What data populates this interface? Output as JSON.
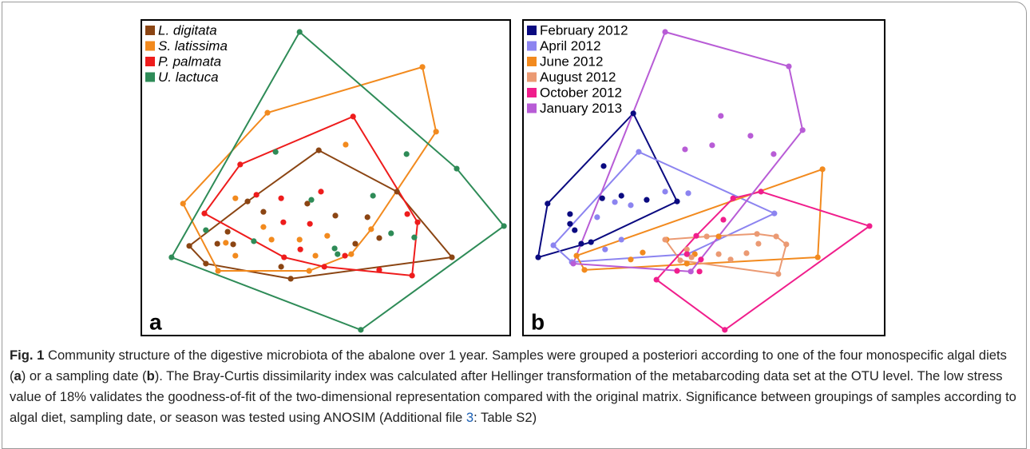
{
  "chart_data": [
    {
      "type": "scatter",
      "panel_label": "a",
      "xlim": [
        0,
        100
      ],
      "ylim": [
        0,
        100
      ],
      "series": [
        {
          "name": "L. digitata",
          "color": "#8b4513",
          "x": [
            48.1,
            69.3,
            84.2,
            40.5,
            17.5,
            13.0,
            20.6,
            23.4,
            28.8,
            33.1,
            45.0,
            52.6,
            61.3,
            64.5,
            37.9,
            24.9,
            58.0
          ],
          "y": [
            58.7,
            45.6,
            24.8,
            18.0,
            22.8,
            28.4,
            29.1,
            32.9,
            42.5,
            39.2,
            41.8,
            38.0,
            37.5,
            30.9,
            21.8,
            28.9,
            29.1
          ]
        },
        {
          "name": "S. latissima",
          "color": "#f28a1e",
          "x": [
            11.3,
            34.2,
            76.2,
            79.9,
            20.8,
            55.4,
            25.5,
            33.1,
            22.9,
            25.5,
            35.3,
            42.9,
            50.4,
            47.2,
            45.5,
            56.9,
            62.3
          ],
          "y": [
            41.8,
            70.6,
            85.1,
            64.6,
            20.5,
            60.5,
            43.5,
            34.4,
            29.4,
            25.3,
            30.4,
            30.4,
            31.6,
            25.3,
            20.5,
            25.8,
            33.7
          ]
        },
        {
          "name": "P. palmata",
          "color": "#ee1c1c",
          "x": [
            17.1,
            26.8,
            57.4,
            72.1,
            74.9,
            73.4,
            64.5,
            49.6,
            38.7,
            31.2,
            37.9,
            48.7,
            38.5,
            45.7,
            55.2,
            43.1
          ],
          "y": [
            38.7,
            54.2,
            69.4,
            38.5,
            35.9,
            19.0,
            20.8,
            21.8,
            24.8,
            44.6,
            43.5,
            45.6,
            35.9,
            35.4,
            25.3,
            27.3
          ]
        },
        {
          "name": "U. lactuca",
          "color": "#2e8b57",
          "x": [
            42.9,
            85.5,
            98.3,
            59.5,
            8.2,
            36.4,
            71.9,
            17.5,
            30.5,
            46.1,
            52.4,
            53.2,
            62.8,
            67.7,
            74.0
          ],
          "y": [
            96.2,
            52.9,
            34.7,
            1.8,
            24.8,
            58.2,
            57.5,
            33.4,
            29.9,
            43.0,
            27.6,
            25.8,
            44.3,
            32.4,
            31.1
          ]
        }
      ]
    },
    {
      "type": "scatter",
      "panel_label": "b",
      "xlim": [
        0,
        100
      ],
      "ylim": [
        0,
        100
      ],
      "series": [
        {
          "name": "February 2012",
          "color": "#0a0a80",
          "x": [
            30.5,
            42.6,
            18.8,
            4.2,
            6.8,
            13.0,
            13.0,
            14.3,
            16.1,
            21.9,
            27.2,
            34.2,
            22.3
          ],
          "y": [
            70.4,
            42.5,
            29.6,
            24.8,
            41.8,
            38.5,
            35.4,
            33.4,
            29.1,
            43.5,
            44.3,
            43.0,
            53.7
          ]
        },
        {
          "name": "April 2012",
          "color": "#8c84f0",
          "x": [
            32.0,
            69.5,
            45.5,
            13.5,
            8.4,
            20.5,
            25.4,
            29.8,
            39.3,
            45.7,
            27.2,
            22.7
          ],
          "y": [
            58.2,
            38.7,
            25.8,
            23.3,
            28.6,
            37.5,
            42.3,
            41.3,
            45.6,
            45.1,
            30.4,
            27.3
          ]
        },
        {
          "name": "June 2012",
          "color": "#f28a1e",
          "x": [
            82.8,
            81.5,
            17.0,
            14.8,
            39.7,
            54.1,
            33.1,
            47.5,
            29.8,
            45.3
          ],
          "y": [
            52.7,
            24.8,
            20.8,
            25.3,
            30.4,
            31.4,
            26.3,
            25.8,
            24.1,
            22.8
          ]
        },
        {
          "name": "August 2012",
          "color": "#eb9a73",
          "x": [
            39.3,
            50.8,
            64.7,
            70.0,
            72.8,
            70.6,
            46.6,
            43.5,
            65.1,
            61.8,
            54.1,
            57.4,
            45.3
          ],
          "y": [
            30.4,
            31.4,
            32.2,
            31.4,
            28.9,
            19.5,
            24.8,
            23.8,
            29.1,
            26.1,
            25.8,
            24.1,
            27.3
          ]
        },
        {
          "name": "October 2012",
          "color": "#f01e8c",
          "x": [
            65.8,
            95.8,
            55.8,
            36.9,
            42.6,
            49.2,
            48.8,
            47.9,
            55.4,
            58.1,
            45.3
          ],
          "y": [
            45.6,
            34.7,
            1.8,
            17.7,
            20.5,
            24.1,
            20.3,
            31.6,
            36.7,
            43.5,
            25.8
          ]
        },
        {
          "name": "January 2013",
          "color": "#b85cd6",
          "x": [
            39.3,
            73.5,
            77.3,
            69.3,
            13.9,
            46.4,
            54.7,
            44.8,
            52.3,
            62.9
          ],
          "y": [
            96.2,
            85.3,
            65.1,
            57.5,
            22.8,
            20.3,
            69.6,
            59.0,
            60.3,
            63.3
          ]
        }
      ]
    }
  ],
  "caption": {
    "label": "Fig. 1",
    "segments": [
      " Community structure of the digestive microbiota of the abalone over 1 year. Samples were grouped a posteriori according to one of the four monospecific algal diets (",
      "a",
      ") or a sampling date (",
      "b",
      "). The Bray-Curtis dissimilarity index was calculated after Hellinger transformation of the metabarcoding data set at the OTU level. The low stress value of 18% validates the goodness-of-fit of the two-dimensional representation compared with the original matrix. Significance between groupings of samples according to algal diet, sampling date, or season was tested using ANOSIM (Additional file ",
      "3",
      ": Table S2)"
    ]
  }
}
